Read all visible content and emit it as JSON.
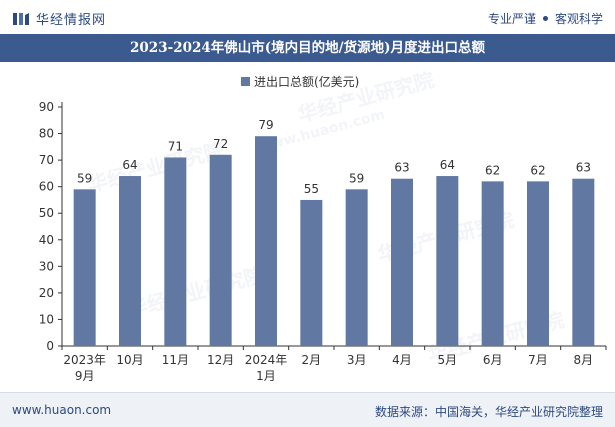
{
  "header": {
    "brand": "华经情报网",
    "slogan_left": "专业严谨",
    "slogan_right": "客观科学"
  },
  "chart_title": "2023-2024年佛山市(境内目的地/货源地)月度进出口总额",
  "watermark": {
    "text": "华经产业研究院",
    "url": "www.huaon.com"
  },
  "footer": {
    "website": "www.huaon.com",
    "source": "数据来源：中国海关，华经产业研究院整理"
  },
  "colors": {
    "bar": "#6178a3",
    "title_bg": "#3b5a8f",
    "accent": "#2d4a80"
  },
  "chart_data": {
    "type": "bar",
    "categories": [
      "2023年\n9月",
      "10月",
      "11月",
      "12月",
      "2024年\n1月",
      "2月",
      "3月",
      "4月",
      "5月",
      "6月",
      "7月",
      "8月"
    ],
    "series": [
      {
        "name": "进出口总额(亿美元)",
        "values": [
          59,
          64,
          71,
          72,
          79,
          55,
          59,
          63,
          64,
          62,
          62,
          63
        ]
      }
    ],
    "ylim": [
      0,
      90
    ],
    "yticks": [
      0,
      10,
      20,
      30,
      40,
      50,
      60,
      70,
      80,
      90
    ],
    "xlabel": "",
    "ylabel": "",
    "legend_position": "top-center",
    "grid": false
  }
}
